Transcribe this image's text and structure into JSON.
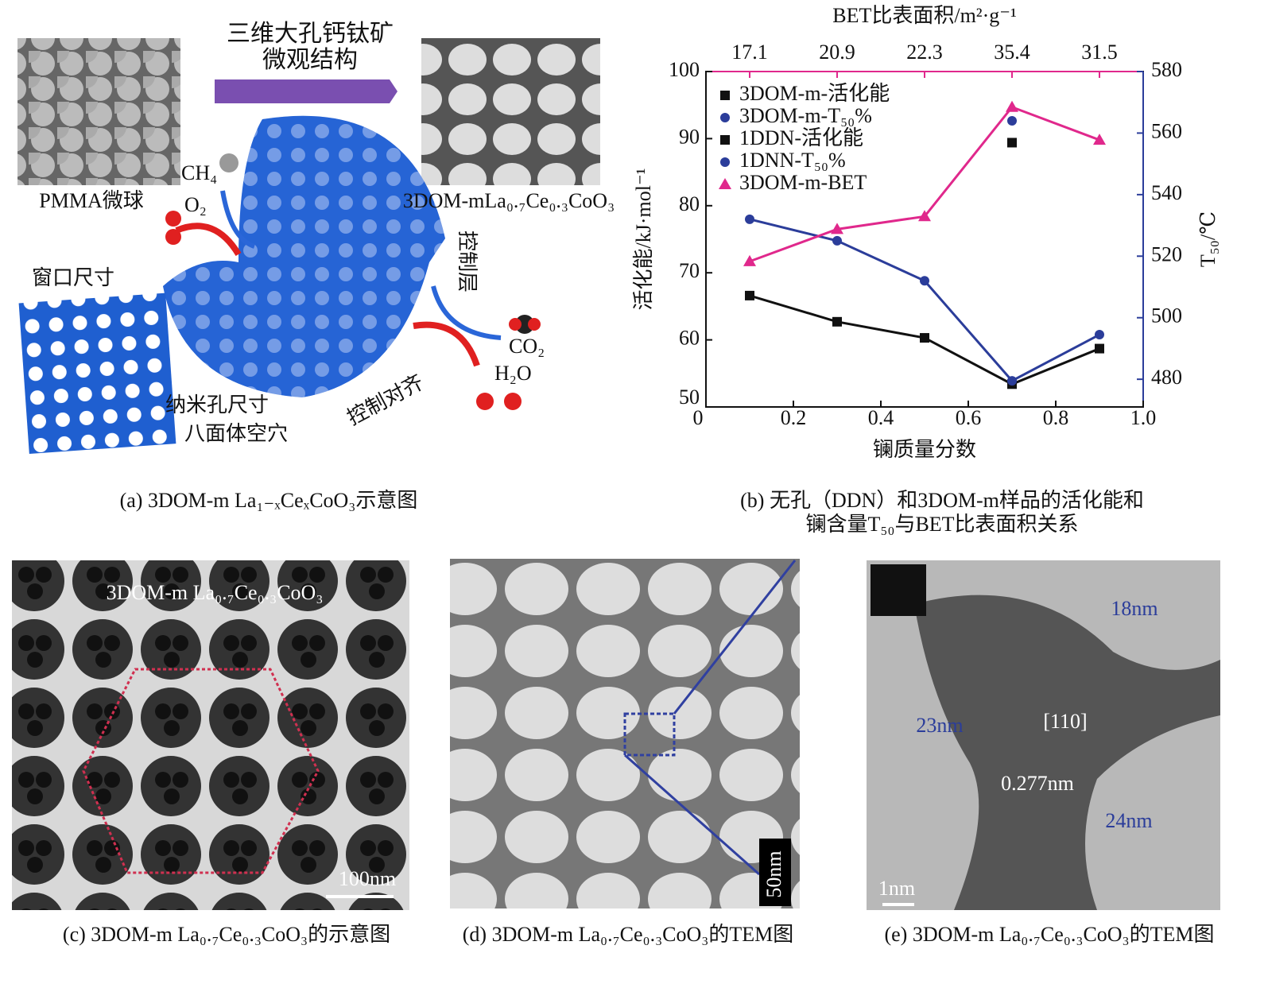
{
  "panel_a": {
    "title": [
      "三维大孔钙钛矿",
      "微观结构"
    ],
    "labels": [
      "PMMA微球",
      "CH₄",
      "O₂",
      "3DOM-mLa₀.₇Ce₀.₃CoO₃",
      "窗口尺寸",
      "控制层",
      "CO₂",
      "H₂O",
      "纳米孔尺寸",
      "八面体空穴",
      "控制对齐"
    ],
    "caption": "(a) 3DOM-m La₁₋ₓCeₓCoO₃示意图"
  },
  "chart_data": {
    "type": "line",
    "x_label": "镧质量分数",
    "y_label": "活化能/kJ·mol⁻¹",
    "y2_label": "T₅₀/℃",
    "x2_label": "BET比表面积/m²·g⁻¹",
    "x": [
      0.1,
      0.3,
      0.5,
      0.7,
      0.9
    ],
    "x2_labels": [
      "17.1",
      "20.9",
      "22.3",
      "35.4",
      "31.5"
    ],
    "xlim": [
      0,
      1
    ],
    "xticks": [
      0,
      0.2,
      0.4,
      0.6,
      0.8,
      {
        "value": 1,
        "label": "1.0"
      }
    ],
    "ylim": [
      50,
      100
    ],
    "yticks": [
      50,
      60,
      70,
      80,
      90,
      100
    ],
    "y2lim": [
      471,
      580
    ],
    "y2ticks": [
      480,
      500,
      520,
      540,
      560,
      580
    ],
    "legend": "upper left",
    "series": [
      {
        "name": "3DOM-m-活化能",
        "color": "#111111",
        "marker": "square",
        "values": [
          66.6,
          62.7,
          60.3,
          53.4,
          58.7
        ]
      },
      {
        "name": "3DOM-m-T₅₀%",
        "color": "#2b3d9a",
        "marker": "circle",
        "axis": "y2",
        "values": [
          532,
          525,
          512,
          479.5,
          494.5
        ]
      },
      {
        "name": "1DDN-活化能",
        "color": "#111111",
        "marker": "square",
        "values": [
          null,
          null,
          null,
          89.4,
          null
        ]
      },
      {
        "name": "1DNN-T₅₀%",
        "color": "#2b3d9a",
        "marker": "circle",
        "axis": "y2",
        "values": [
          null,
          null,
          null,
          564,
          null
        ]
      },
      {
        "name": "3DOM-m-BET",
        "color": "#e0288c",
        "marker": "triangle",
        "values": [
          71.7,
          76.5,
          78.4,
          94.7,
          89.8
        ]
      }
    ],
    "caption": [
      "(b) 无孔（DDN）和3DOM-m样品的活化能和",
      "镧含量T₅₀与BET比表面积关系"
    ]
  },
  "panel_c": {
    "labels": [
      "3DOM-m La₀.₇Ce₀.₃CoO₃",
      "100nm"
    ],
    "caption": "(c) 3DOM-m La₀.₇Ce₀.₃CoO₃的示意图"
  },
  "panel_d": {
    "labels": [
      "50nm"
    ],
    "caption": "(d) 3DOM-m La₀.₇Ce₀.₃CoO₃的TEM图"
  },
  "panel_e": {
    "labels": [
      "18nm",
      "23nm",
      "[110]",
      "0.277nm",
      "24nm",
      "1nm"
    ],
    "caption": "(e) 3DOM-m La₀.₇Ce₀.₃CoO₃的TEM图"
  }
}
